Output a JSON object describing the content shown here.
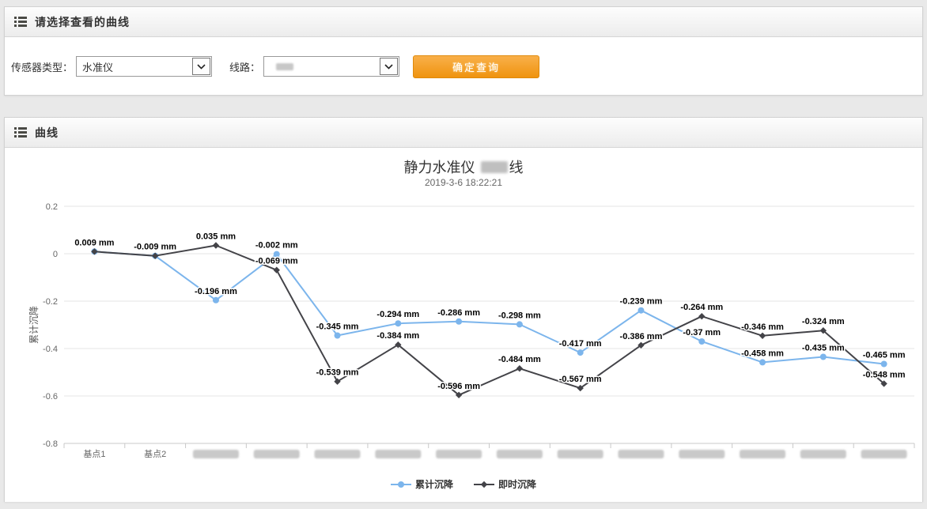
{
  "filter_panel": {
    "title": "请选择查看的曲线",
    "sensor_type": {
      "label": "传感器类型：",
      "value": "水准仪"
    },
    "line": {
      "label": "线路：",
      "value_redacted": true
    },
    "submit_label": "确定查询",
    "button_color": "#f29512"
  },
  "chart_panel": {
    "title": "曲线"
  },
  "chart_data": {
    "type": "line",
    "title": {
      "prefix": "静力水准仪",
      "redacted_middle": true,
      "suffix": "线"
    },
    "subtitle": "2019-3-6 18:22:21",
    "ylabel": "累计沉降",
    "ylim": [
      -0.8,
      0.2
    ],
    "yticks": [
      0.2,
      0,
      -0.2,
      -0.4,
      -0.6,
      -0.8
    ],
    "grid": true,
    "legend_position": "bottom",
    "data_label_suffix": " mm",
    "categories": [
      "基点1",
      "基点2",
      null,
      null,
      null,
      null,
      null,
      null,
      null,
      null,
      null,
      null,
      null,
      null
    ],
    "categories_note": "12 rightmost category labels are blurred/redacted in source image",
    "series": [
      {
        "name": "累计沉降",
        "color": "#7cb5ec",
        "marker": "circle",
        "values": [
          0.009,
          -0.009,
          -0.196,
          -0.002,
          -0.345,
          -0.294,
          -0.286,
          -0.298,
          -0.417,
          -0.239,
          -0.37,
          -0.458,
          -0.435,
          -0.465
        ]
      },
      {
        "name": "即时沉降",
        "color": "#434348",
        "marker": "diamond",
        "values": [
          0.009,
          -0.009,
          0.035,
          -0.069,
          -0.539,
          -0.384,
          -0.596,
          -0.484,
          -0.567,
          -0.386,
          -0.264,
          -0.346,
          -0.324,
          -0.548
        ]
      }
    ]
  }
}
